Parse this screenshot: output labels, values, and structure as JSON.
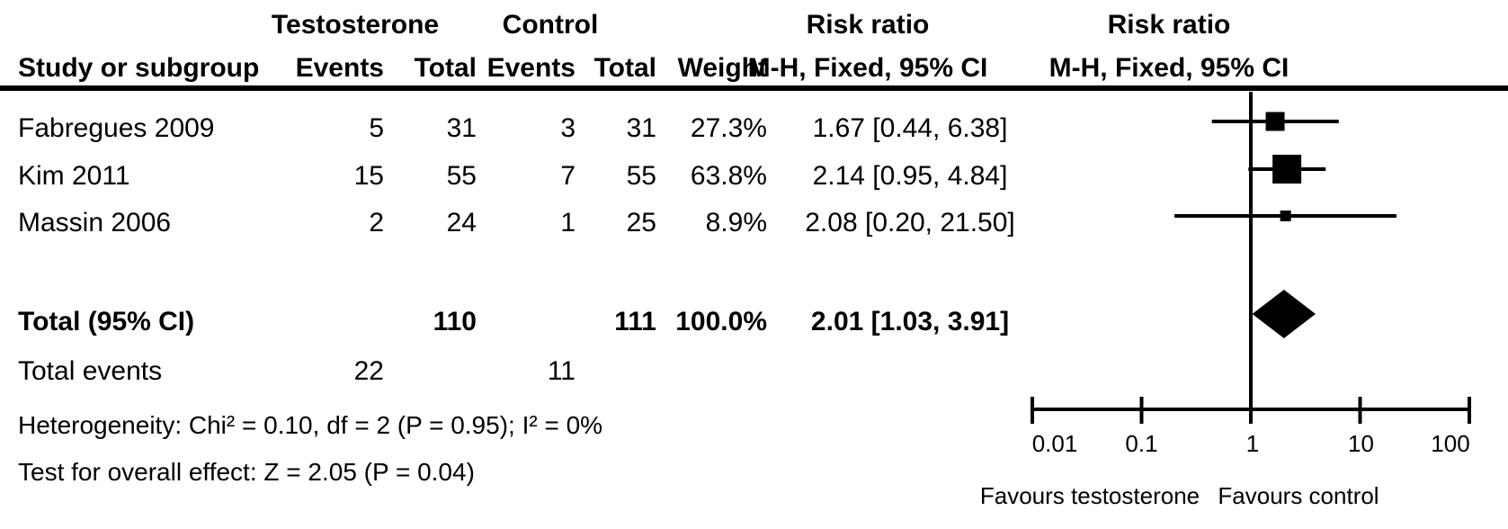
{
  "header": {
    "group1": "Testosterone",
    "group2": "Control",
    "risk_ratio": "Risk ratio",
    "study_col": "Study or subgroup",
    "events": "Events",
    "total": "Total",
    "weight": "Weight",
    "mh": "M-H, Fixed, 95% CI"
  },
  "totals": {
    "label": "Total (95% CI)",
    "total_t": "110",
    "total_c": "111",
    "weight": "100.0%",
    "ci_text": "2.01 [1.03, 3.91]"
  },
  "total_events": {
    "label": "Total events",
    "events_t": "22",
    "events_c": "11"
  },
  "stats": {
    "heterogeneity": "Heterogeneity: Chi² = 0.10, df = 2 (P = 0.95); I² = 0%",
    "overall_effect": "Test for overall effect: Z = 2.05 (P = 0.04)"
  },
  "chart_data": {
    "type": "forest",
    "effect_measure": "Risk ratio",
    "method": "M-H, Fixed, 95% CI",
    "studies": [
      {
        "name": "Fabregues 2009",
        "events_t": "5",
        "total_t": "31",
        "events_c": "3",
        "total_c": "31",
        "weight": "27.3%",
        "weight_pct": 27.3,
        "rr": 1.67,
        "ci_low": 0.44,
        "ci_high": 6.38,
        "ci_text": "1.67 [0.44, 6.38]"
      },
      {
        "name": "Kim 2011",
        "events_t": "15",
        "total_t": "55",
        "events_c": "7",
        "total_c": "55",
        "weight": "63.8%",
        "weight_pct": 63.8,
        "rr": 2.14,
        "ci_low": 0.95,
        "ci_high": 4.84,
        "ci_text": "2.14 [0.95, 4.84]"
      },
      {
        "name": "Massin 2006",
        "events_t": "2",
        "total_t": "24",
        "events_c": "1",
        "total_c": "25",
        "weight": "8.9%",
        "weight_pct": 8.9,
        "rr": 2.08,
        "ci_low": 0.2,
        "ci_high": 21.5,
        "ci_text": "2.08 [0.20, 21.50]"
      }
    ],
    "pooled": {
      "rr": 2.01,
      "ci_low": 1.03,
      "ci_high": 3.91
    },
    "x_axis": {
      "scale": "log",
      "ticks": [
        0.01,
        0.1,
        1,
        10,
        100
      ],
      "tick_labels": [
        "0.01",
        "0.1",
        "1",
        "10",
        "100"
      ],
      "range": [
        0.01,
        100
      ]
    },
    "favours_left": "Favours testosterone",
    "favours_right": "Favours control"
  }
}
